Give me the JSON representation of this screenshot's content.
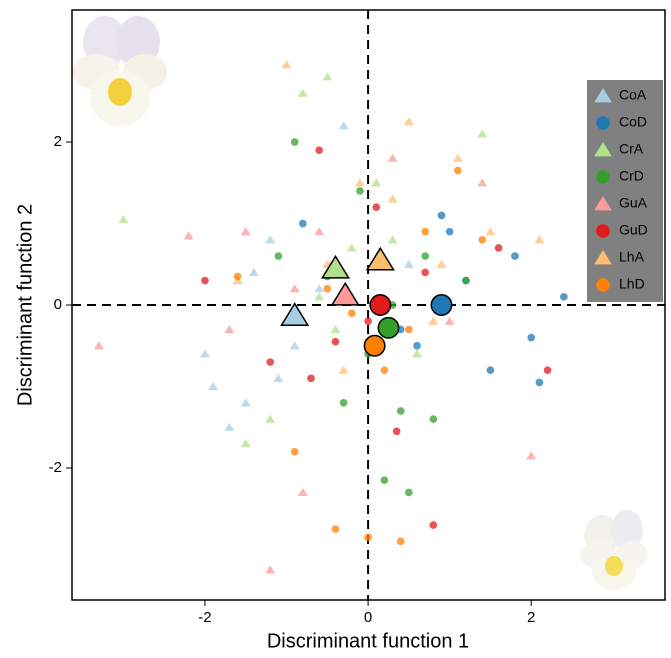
{
  "chart_data": {
    "type": "scatter",
    "xlabel": "Discriminant function 1",
    "ylabel": "Discriminant function 2",
    "xlim": [
      -3.63,
      3.64
    ],
    "ylim": [
      -3.62,
      3.62
    ],
    "xticks": [
      -2,
      0,
      2
    ],
    "yticks": [
      -2,
      0,
      2
    ],
    "hlines": [
      0
    ],
    "vlines": [
      0
    ],
    "legend": "upper right",
    "series": [
      {
        "name": "CoA",
        "color": "#a6cee3",
        "marker": "triangle",
        "x": [
          -1.9,
          -1.5,
          -1.2,
          -0.9,
          -0.6,
          -1.7,
          -1.1,
          -0.3,
          -1.4,
          -0.8,
          0.5,
          -2.0
        ],
        "y": [
          -1.0,
          -1.2,
          0.8,
          -0.5,
          0.2,
          -1.5,
          -0.9,
          2.2,
          0.4,
          -0.2,
          0.5,
          -0.6
        ],
        "centroid": {
          "x": -0.9,
          "y": -0.13
        }
      },
      {
        "name": "CoD",
        "color": "#1f78b4",
        "marker": "circle",
        "x": [
          0.9,
          1.5,
          2.1,
          1.2,
          0.6,
          2.4,
          -0.8,
          1.8,
          0.4,
          1.0,
          -0.5,
          2.0
        ],
        "y": [
          1.1,
          -0.8,
          -0.95,
          0.3,
          -0.5,
          0.1,
          1.0,
          0.6,
          -0.3,
          0.9,
          0.35,
          -0.4
        ],
        "centroid": {
          "x": 0.9,
          "y": 0.0
        }
      },
      {
        "name": "CrA",
        "color": "#b2df8a",
        "marker": "triangle",
        "x": [
          -3.0,
          -1.5,
          -0.5,
          -0.8,
          0.3,
          1.4,
          -0.2,
          -0.6,
          0.6,
          -1.2,
          0.1,
          -0.4
        ],
        "y": [
          1.05,
          -1.7,
          2.8,
          2.6,
          0.8,
          2.1,
          0.7,
          0.1,
          -0.6,
          -1.4,
          1.5,
          -0.3
        ],
        "centroid": {
          "x": -0.4,
          "y": 0.45
        }
      },
      {
        "name": "CrD",
        "color": "#33a02c",
        "marker": "circle",
        "x": [
          -0.9,
          0.4,
          0.2,
          0.7,
          -0.3,
          -0.1,
          1.2,
          0.5,
          0.0,
          -1.1,
          0.8,
          0.3
        ],
        "y": [
          2.0,
          -1.3,
          -2.15,
          0.6,
          -1.2,
          1.4,
          0.3,
          -2.3,
          -0.6,
          0.6,
          -1.4,
          0.0
        ],
        "centroid": {
          "x": 0.25,
          "y": -0.28
        }
      },
      {
        "name": "GuA",
        "color": "#fb9a99",
        "marker": "triangle",
        "x": [
          -3.3,
          -1.5,
          -1.2,
          -2.2,
          1.4,
          2.0,
          -0.6,
          -0.8,
          -1.7,
          0.3,
          -0.9,
          1.0
        ],
        "y": [
          -0.5,
          0.9,
          -3.25,
          0.85,
          1.5,
          -1.85,
          0.9,
          -2.3,
          -0.3,
          1.8,
          0.2,
          -0.2
        ],
        "centroid": {
          "x": -0.28,
          "y": 0.12
        }
      },
      {
        "name": "GuD",
        "color": "#e31a1c",
        "marker": "circle",
        "x": [
          -0.6,
          0.35,
          0.8,
          -1.2,
          0.1,
          2.2,
          -2.0,
          0.7,
          -0.4,
          1.6,
          0.0,
          -0.7
        ],
        "y": [
          1.9,
          -1.55,
          -2.7,
          -0.7,
          1.2,
          -0.8,
          0.3,
          0.4,
          -0.45,
          0.7,
          -0.2,
          -0.9
        ],
        "centroid": {
          "x": 0.15,
          "y": 0.0
        }
      },
      {
        "name": "LhA",
        "color": "#fdbf6f",
        "marker": "triangle",
        "x": [
          -1.0,
          0.5,
          -0.5,
          1.1,
          0.8,
          2.1,
          -1.6,
          0.3,
          -0.3,
          1.5,
          0.9,
          -0.1
        ],
        "y": [
          2.95,
          2.25,
          0.5,
          1.8,
          -0.2,
          0.8,
          0.3,
          1.3,
          -0.8,
          0.9,
          0.5,
          1.5
        ],
        "centroid": {
          "x": 0.15,
          "y": 0.55
        }
      },
      {
        "name": "LhD",
        "color": "#ff7f00",
        "marker": "circle",
        "x": [
          -0.4,
          0.0,
          0.4,
          -1.6,
          1.1,
          0.7,
          -0.2,
          1.4,
          0.2,
          -0.9,
          0.5,
          -0.5
        ],
        "y": [
          -2.75,
          -2.85,
          -2.9,
          0.35,
          1.65,
          0.9,
          -0.1,
          0.8,
          -0.8,
          -1.8,
          -0.3,
          0.2
        ],
        "centroid": {
          "x": 0.08,
          "y": -0.5
        }
      }
    ]
  }
}
